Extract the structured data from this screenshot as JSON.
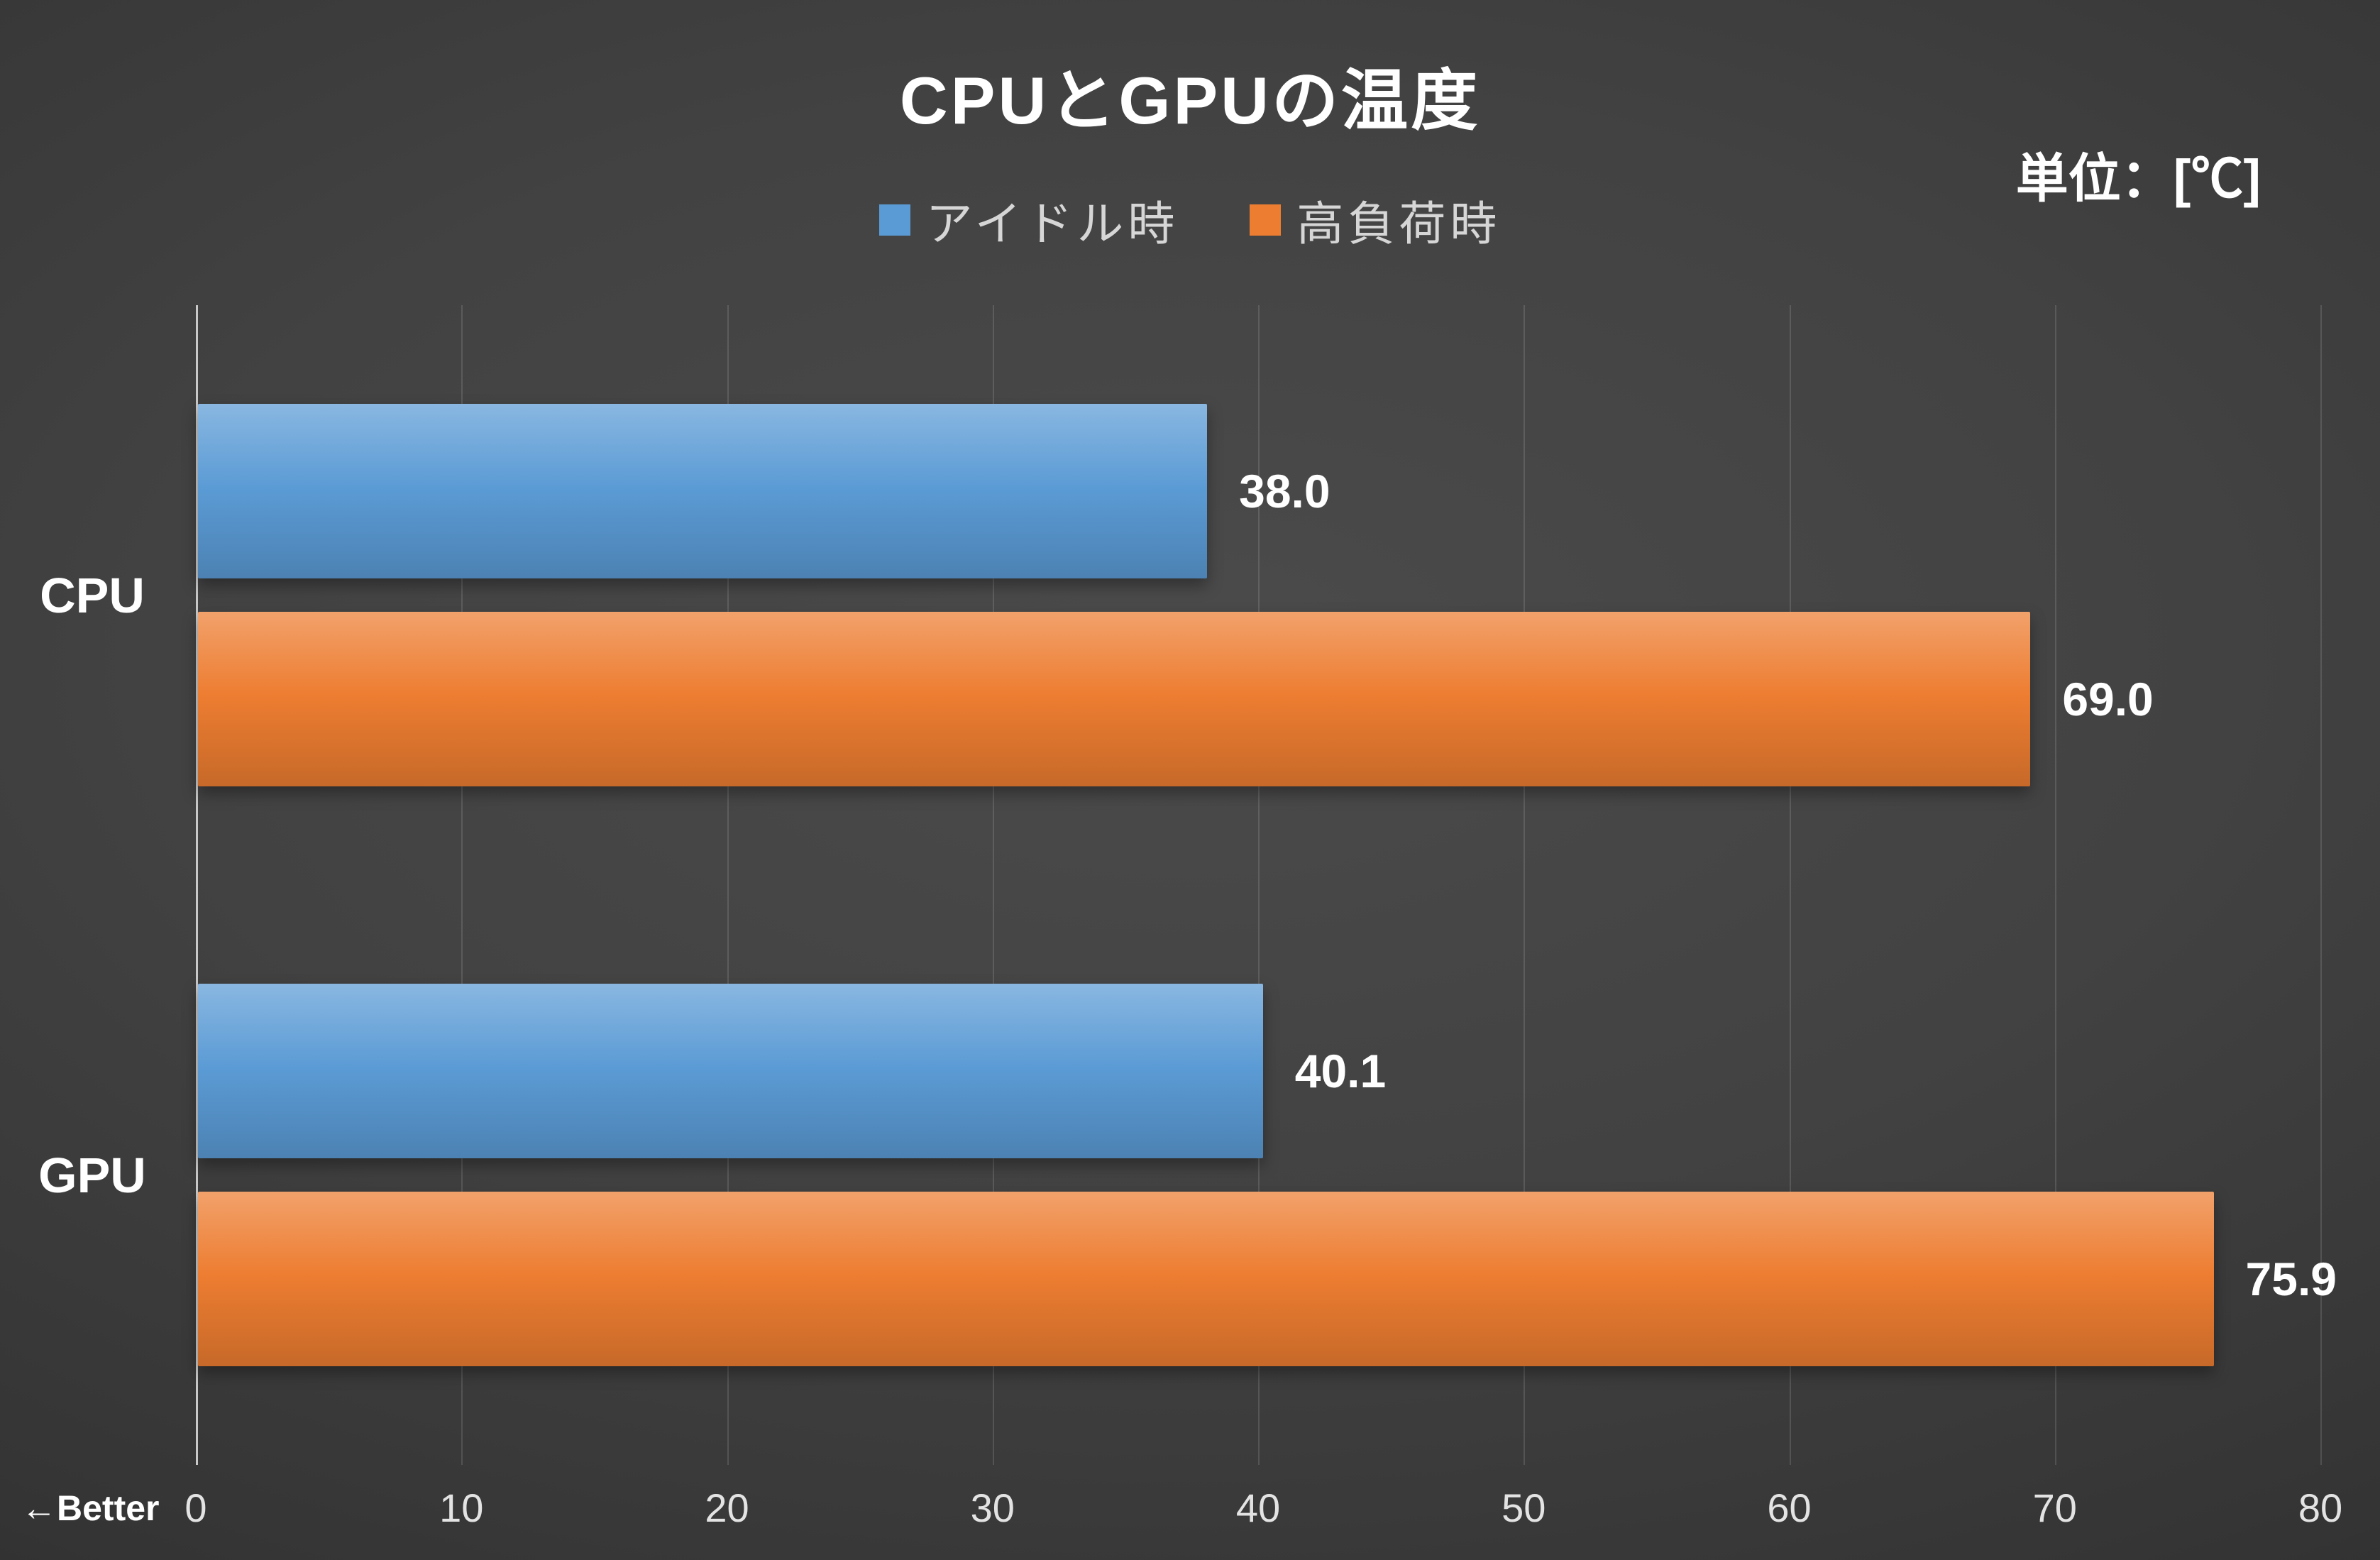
{
  "chart": {
    "title": "CPUとGPUの温度",
    "unit_label": "単位：[℃]",
    "better_label": "←Better"
  },
  "chart_data": {
    "type": "bar",
    "orientation": "horizontal",
    "title": "CPUとGPUの温度",
    "categories": [
      "CPU",
      "GPU"
    ],
    "series": [
      {
        "name": "アイドル時",
        "color": "#5b9bd5",
        "values": [
          38.0,
          40.1
        ],
        "labels": [
          "38.0",
          "40.1"
        ]
      },
      {
        "name": "高負荷時",
        "color": "#ed7d31",
        "values": [
          69.0,
          75.9
        ],
        "labels": [
          "69.0",
          "75.9"
        ]
      }
    ],
    "xlim": [
      0,
      80
    ],
    "x_ticks": [
      0,
      10,
      20,
      30,
      40,
      50,
      60,
      70,
      80
    ],
    "grid": true,
    "legend_position": "top",
    "annotations": [
      "単位：[℃]",
      "←Better"
    ]
  }
}
